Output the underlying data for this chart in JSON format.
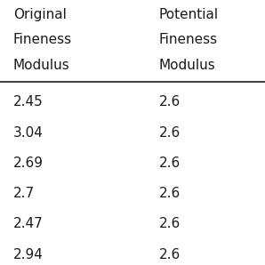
{
  "col1_header": [
    "Original",
    "Fineness",
    "Modulus"
  ],
  "col2_header": [
    "Potential",
    "Fineness",
    "Modulus"
  ],
  "col1_values": [
    "2.45",
    "3.04",
    "2.69",
    "2.7",
    "2.47",
    "2.94"
  ],
  "col2_values": [
    "2.6",
    "2.6",
    "2.6",
    "2.6",
    "2.6",
    "2.6"
  ],
  "background_color": "#ffffff",
  "text_color": "#1a1a1a",
  "font_size": 11,
  "header_font_size": 11
}
